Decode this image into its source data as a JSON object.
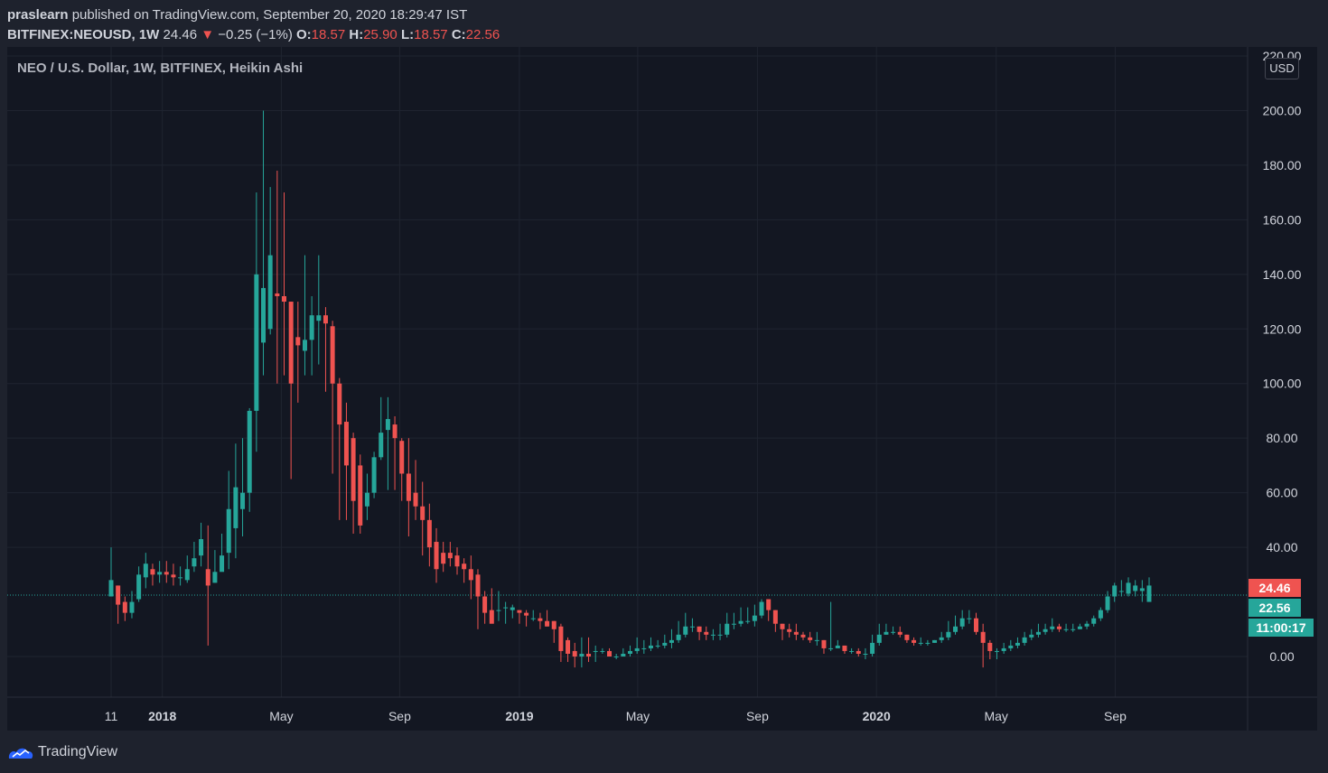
{
  "header": {
    "author": "praslearn",
    "published_text": "published on TradingView.com, September 20, 2020 18:29:47 IST",
    "symbol_line": "BITFINEX:NEOUSD, 1W",
    "last_price": "24.46",
    "arrow": "▼",
    "change": "−0.25 (−1%)",
    "o_label": "O:",
    "o_value": "18.57",
    "h_label": "H:",
    "h_value": "25.90",
    "l_label": "L:",
    "l_value": "18.57",
    "c_label": "C:",
    "c_value": "22.56"
  },
  "legend": {
    "title": "NEO / U.S. Dollar, 1W, BITFINEX, Heikin Ashi"
  },
  "axis": {
    "currency": "USD"
  },
  "tags": {
    "last_price": "24.46",
    "close_price": "22.56",
    "countdown": "11:00:17"
  },
  "footer": {
    "logo_text": "TradingView",
    "logo_icon": "tradingview-logo-icon"
  },
  "colors": {
    "background": "#131722",
    "up": "#26a69a",
    "down": "#ef5350",
    "grid": "#1f2430",
    "text": "#d1d4dc"
  },
  "chart_data": {
    "type": "candlestick",
    "title": "NEO / U.S. Dollar, 1W, BITFINEX, Heikin Ashi",
    "ylim": [
      -15,
      220
    ],
    "y_ticks": [
      "220.00",
      "200.00",
      "180.00",
      "160.00",
      "140.00",
      "120.00",
      "100.00",
      "80.00",
      "60.00",
      "40.00",
      "0.00"
    ],
    "y_tick_values": [
      220,
      200,
      180,
      160,
      140,
      120,
      100,
      80,
      60,
      40,
      0
    ],
    "x_labels": [
      {
        "label": "11",
        "week": 0
      },
      {
        "label": "2018",
        "week": 7.4
      },
      {
        "label": "May",
        "week": 24.6
      },
      {
        "label": "Sep",
        "week": 41.7
      },
      {
        "label": "2019",
        "week": 59
      },
      {
        "label": "May",
        "week": 76.1
      },
      {
        "label": "Sep",
        "week": 93.4
      },
      {
        "label": "2020",
        "week": 110.6
      },
      {
        "label": "May",
        "week": 127.9
      },
      {
        "label": "Sep",
        "week": 145.1
      }
    ],
    "bold_x_labels": [
      "2018",
      "2019",
      "2020"
    ],
    "grid": true,
    "last_price_line": 22.5,
    "candles": [
      [
        22,
        28,
        40,
        22
      ],
      [
        26,
        19,
        26,
        12
      ],
      [
        20,
        16,
        22,
        13
      ],
      [
        16,
        20,
        24,
        14
      ],
      [
        21,
        30,
        33,
        20
      ],
      [
        29,
        34,
        38,
        25
      ],
      [
        32,
        30,
        34,
        26
      ],
      [
        30,
        31,
        35,
        27
      ],
      [
        31,
        30,
        35,
        27
      ],
      [
        30,
        29,
        34,
        26
      ],
      [
        29,
        29,
        33,
        26
      ],
      [
        28,
        32,
        37,
        27
      ],
      [
        33,
        36,
        42,
        31
      ],
      [
        37,
        43,
        49,
        33
      ],
      [
        32,
        26,
        48,
        4
      ],
      [
        27,
        31,
        39,
        27
      ],
      [
        31,
        37,
        45,
        32
      ],
      [
        38,
        54,
        68,
        32
      ],
      [
        47,
        62,
        78,
        36
      ],
      [
        54,
        60,
        80,
        44
      ],
      [
        60,
        90,
        91,
        53
      ],
      [
        90,
        140,
        170,
        75
      ],
      [
        115,
        135,
        200,
        103
      ],
      [
        120,
        147,
        172,
        118
      ],
      [
        133,
        132,
        178,
        100
      ],
      [
        132,
        130,
        170,
        103
      ],
      [
        130,
        100,
        130,
        65
      ],
      [
        117,
        114,
        130,
        93
      ],
      [
        112,
        116,
        147,
        103
      ],
      [
        116,
        125,
        132,
        103
      ],
      [
        123,
        125,
        147,
        107
      ],
      [
        125,
        122,
        128,
        97
      ],
      [
        121,
        100,
        123,
        67
      ],
      [
        100,
        85,
        102,
        50
      ],
      [
        86,
        70,
        93,
        50
      ],
      [
        80,
        57,
        82,
        45
      ],
      [
        70,
        48,
        74,
        45
      ],
      [
        55,
        60,
        67,
        50
      ],
      [
        60,
        73,
        75,
        58
      ],
      [
        73,
        82,
        95,
        72
      ],
      [
        83,
        87,
        95,
        61
      ],
      [
        85,
        80,
        88,
        61
      ],
      [
        79,
        67,
        80,
        57
      ],
      [
        67,
        57,
        80,
        44
      ],
      [
        60,
        55,
        72,
        50
      ],
      [
        55,
        50,
        64,
        37
      ],
      [
        50,
        40,
        56,
        33
      ],
      [
        42,
        32,
        47,
        27
      ],
      [
        38,
        34,
        42,
        31
      ],
      [
        38,
        36,
        42,
        33
      ],
      [
        37,
        33,
        40,
        30
      ],
      [
        34,
        32,
        36,
        27
      ],
      [
        32,
        28,
        37,
        21
      ],
      [
        30,
        22,
        32,
        10
      ],
      [
        22,
        16,
        24,
        12
      ],
      [
        17,
        12,
        25,
        13
      ],
      [
        17,
        17,
        24,
        13
      ],
      [
        18,
        18,
        20,
        12
      ],
      [
        17,
        18,
        19,
        14
      ],
      [
        17,
        16,
        17,
        12
      ],
      [
        16,
        15,
        17,
        11
      ],
      [
        14,
        14,
        17,
        13
      ],
      [
        14,
        13,
        16,
        10
      ],
      [
        13,
        11,
        17,
        11
      ],
      [
        13,
        10,
        13,
        5
      ],
      [
        11,
        2,
        12,
        -2
      ],
      [
        6,
        1,
        7,
        -2
      ],
      [
        2,
        0,
        5,
        -4
      ],
      [
        0,
        1,
        7,
        -4
      ],
      [
        1,
        0,
        7,
        -2
      ],
      [
        2,
        2,
        4,
        -2
      ],
      [
        2,
        2,
        3,
        1
      ],
      [
        2,
        0,
        3,
        0
      ],
      [
        0,
        0,
        1,
        -1
      ],
      [
        0,
        1,
        3,
        0
      ],
      [
        1,
        2,
        4,
        0
      ],
      [
        2,
        3,
        7,
        1
      ],
      [
        3,
        3,
        6,
        1
      ],
      [
        3,
        4,
        7,
        2
      ],
      [
        4,
        4,
        6,
        3
      ],
      [
        4,
        5,
        8,
        3
      ],
      [
        5,
        6,
        10,
        3
      ],
      [
        6,
        8,
        13,
        5
      ],
      [
        8,
        11,
        16,
        7
      ],
      [
        11,
        11,
        14,
        9
      ],
      [
        11,
        9,
        11,
        6
      ],
      [
        9,
        8,
        11,
        6
      ],
      [
        8,
        8,
        10,
        6
      ],
      [
        8,
        8,
        12,
        6
      ],
      [
        8,
        12,
        16,
        7
      ],
      [
        12,
        12,
        16,
        10
      ],
      [
        12,
        13,
        18,
        11
      ],
      [
        13,
        13,
        18,
        12
      ],
      [
        13,
        15,
        19,
        11
      ],
      [
        15,
        20,
        21,
        14
      ],
      [
        21,
        17,
        21,
        13
      ],
      [
        17,
        12,
        17,
        9
      ],
      [
        12,
        10,
        12,
        6
      ],
      [
        10,
        9,
        12,
        7
      ],
      [
        9,
        8,
        12,
        6
      ],
      [
        8,
        7,
        9,
        6
      ],
      [
        7,
        6,
        9,
        5
      ],
      [
        6,
        6,
        9,
        4
      ],
      [
        6,
        3,
        6,
        1
      ],
      [
        3,
        3,
        20,
        2
      ],
      [
        3,
        4,
        6,
        3
      ],
      [
        4,
        2,
        4,
        1
      ],
      [
        2,
        2,
        3,
        1
      ],
      [
        2,
        1,
        3,
        0
      ],
      [
        1,
        1,
        3,
        -1
      ],
      [
        1,
        5,
        8,
        0
      ],
      [
        5,
        8,
        12,
        4
      ],
      [
        8,
        9,
        12,
        8
      ],
      [
        9,
        9,
        11,
        8
      ],
      [
        9,
        8,
        11,
        7
      ],
      [
        8,
        6,
        8,
        5
      ],
      [
        6,
        5,
        7,
        4
      ],
      [
        5,
        5,
        7,
        4
      ],
      [
        5,
        5,
        6,
        4
      ],
      [
        5,
        6,
        6,
        5
      ],
      [
        6,
        7,
        9,
        5
      ],
      [
        7,
        9,
        13,
        6
      ],
      [
        9,
        11,
        15,
        8
      ],
      [
        11,
        14,
        17,
        10
      ],
      [
        14,
        14,
        17,
        12
      ],
      [
        14,
        9,
        16,
        8
      ],
      [
        9,
        5,
        12,
        -4
      ],
      [
        5,
        2,
        6,
        -1
      ],
      [
        2,
        2,
        3,
        -1
      ],
      [
        2,
        3,
        5,
        1
      ],
      [
        3,
        4,
        6,
        2
      ],
      [
        4,
        5,
        7,
        3
      ],
      [
        5,
        7,
        9,
        4
      ],
      [
        7,
        8,
        10,
        6
      ],
      [
        8,
        9,
        12,
        7
      ],
      [
        9,
        10,
        12,
        8
      ],
      [
        10,
        11,
        14,
        9
      ],
      [
        11,
        10,
        12,
        9
      ],
      [
        10,
        10,
        12,
        9
      ],
      [
        10,
        10,
        12,
        9
      ],
      [
        10,
        11,
        12,
        10
      ],
      [
        11,
        12,
        13,
        10
      ],
      [
        12,
        14,
        15,
        11
      ],
      [
        14,
        17,
        18,
        13
      ],
      [
        17,
        22,
        24,
        16
      ],
      [
        22,
        26,
        27,
        20
      ],
      [
        24,
        24,
        28,
        22
      ],
      [
        23,
        27,
        29,
        22
      ],
      [
        24,
        26,
        28,
        22
      ],
      [
        24,
        25,
        28,
        20
      ],
      [
        20,
        26,
        29,
        20
      ]
    ]
  }
}
